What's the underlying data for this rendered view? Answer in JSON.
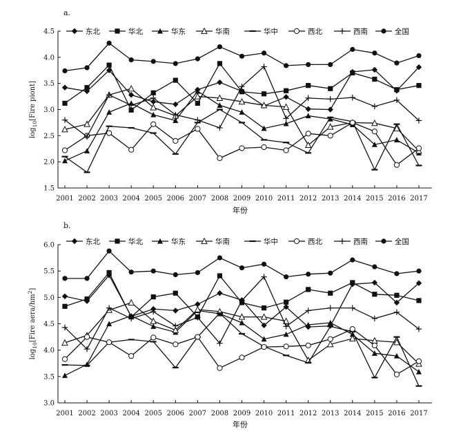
{
  "figure": {
    "colors": {
      "line": "#111111",
      "background": "#ffffff"
    },
    "legend_entries": [
      {
        "name": "东北",
        "marker": "diamond"
      },
      {
        "name": "华北",
        "marker": "square"
      },
      {
        "name": "华东",
        "marker": "triangle"
      },
      {
        "name": "华南",
        "marker": "triangle-open"
      },
      {
        "name": "华中",
        "marker": "dash"
      },
      {
        "name": "西北",
        "marker": "circle-open"
      },
      {
        "name": "西南",
        "marker": "plus"
      },
      {
        "name": "全国",
        "marker": "circle"
      }
    ]
  },
  "chart_data": [
    {
      "panel": "a.",
      "type": "line",
      "xlabel": "年份",
      "ylabel_main": "log",
      "ylabel_sub": "10",
      "ylabel_rest": "[Fire piont]",
      "ylim": [
        1.5,
        4.5
      ],
      "yticks": [
        "1.5",
        "2.0",
        "2.5",
        "3.0",
        "3.5",
        "4.0",
        "4.5"
      ],
      "categories": [
        "2001",
        "2002",
        "2003",
        "2004",
        "2005",
        "2006",
        "2007",
        "2008",
        "2009",
        "2010",
        "2011",
        "2012",
        "2013",
        "2014",
        "2015",
        "2016",
        "2017"
      ],
      "series": [
        {
          "name": "东北",
          "values": [
            3.42,
            3.35,
            3.75,
            3.28,
            3.15,
            3.1,
            3.38,
            3.52,
            3.35,
            3.07,
            3.24,
            3.01,
            3.0,
            3.72,
            3.76,
            3.36,
            3.81
          ]
        },
        {
          "name": "华北",
          "values": [
            3.12,
            3.42,
            3.85,
            2.99,
            3.32,
            3.56,
            3.12,
            3.88,
            3.34,
            3.3,
            3.36,
            3.46,
            3.4,
            3.7,
            3.58,
            3.38,
            3.46
          ]
        },
        {
          "name": "华东",
          "values": [
            2.02,
            2.21,
            2.95,
            3.12,
            2.9,
            2.79,
            3.35,
            3.08,
            2.95,
            2.64,
            2.73,
            2.88,
            2.82,
            2.71,
            2.33,
            2.42,
            2.17
          ]
        },
        {
          "name": "华南",
          "values": [
            2.62,
            2.72,
            3.28,
            3.4,
            3.04,
            2.88,
            3.25,
            3.22,
            3.15,
            3.08,
            3.05,
            2.32,
            2.67,
            2.75,
            2.74,
            2.64,
            2.21
          ]
        },
        {
          "name": "华中",
          "values": [
            2.1,
            1.8,
            2.68,
            2.65,
            2.55,
            2.15,
            2.75,
            3.0,
            2.75,
            2.42,
            2.37,
            2.17,
            2.85,
            2.77,
            1.85,
            2.72,
            1.93
          ]
        },
        {
          "name": "西北",
          "values": [
            2.22,
            2.5,
            2.55,
            2.23,
            2.72,
            2.4,
            2.63,
            2.07,
            2.26,
            2.28,
            2.22,
            2.54,
            2.5,
            2.75,
            2.58,
            1.94,
            2.26
          ]
        },
        {
          "name": "西南",
          "values": [
            2.8,
            2.48,
            3.28,
            3.08,
            3.22,
            2.9,
            2.8,
            2.65,
            3.44,
            3.82,
            2.83,
            3.22,
            3.2,
            3.23,
            3.06,
            3.18,
            2.79
          ]
        },
        {
          "name": "全国",
          "values": [
            3.74,
            3.8,
            4.27,
            3.95,
            3.92,
            3.88,
            3.97,
            4.2,
            4.02,
            4.08,
            3.84,
            3.86,
            3.86,
            4.15,
            4.08,
            3.89,
            4.03
          ]
        }
      ]
    },
    {
      "panel": "b.",
      "type": "line",
      "xlabel": "年份",
      "ylabel_main": "log",
      "ylabel_sub": "10",
      "ylabel_rest": "[Fire aera/hm",
      "ylabel_sup": "2",
      "ylabel_end": "]",
      "ylim": [
        3.0,
        6.0
      ],
      "yticks": [
        "3.0",
        "3.5",
        "4.0",
        "4.5",
        "5.0",
        "5.5",
        "6.0"
      ],
      "categories": [
        "2001",
        "2002",
        "2003",
        "2004",
        "2005",
        "2006",
        "2007",
        "2008",
        "2009",
        "2010",
        "2011",
        "2012",
        "2013",
        "2014",
        "2015",
        "2016",
        "2017"
      ],
      "series": [
        {
          "name": "东北",
          "values": [
            5.02,
            4.93,
            5.42,
            4.64,
            4.78,
            4.75,
            4.87,
            5.08,
            4.95,
            4.47,
            4.82,
            4.44,
            4.46,
            5.25,
            5.28,
            4.9,
            5.27
          ]
        },
        {
          "name": "华北",
          "values": [
            4.83,
            4.97,
            5.47,
            4.63,
            5.01,
            5.08,
            4.63,
            5.41,
            4.9,
            4.8,
            4.91,
            5.15,
            5.08,
            5.28,
            5.06,
            5.04,
            4.94
          ]
        },
        {
          "name": "华东",
          "values": [
            3.52,
            3.73,
            4.5,
            4.65,
            4.45,
            4.34,
            4.75,
            4.69,
            4.52,
            4.21,
            4.3,
            4.48,
            4.52,
            4.3,
            3.94,
            3.89,
            3.59
          ]
        },
        {
          "name": "华南",
          "values": [
            4.14,
            4.28,
            4.76,
            4.9,
            4.55,
            4.38,
            4.77,
            4.73,
            4.63,
            4.63,
            4.55,
            3.81,
            4.11,
            4.22,
            4.18,
            4.15,
            3.74
          ]
        },
        {
          "name": "华中",
          "values": [
            3.72,
            3.71,
            4.15,
            4.2,
            4.16,
            3.67,
            4.25,
            4.7,
            4.31,
            4.07,
            3.9,
            3.76,
            4.45,
            4.35,
            3.48,
            4.25,
            3.32
          ]
        },
        {
          "name": "西北",
          "values": [
            3.83,
            4.25,
            4.15,
            3.89,
            4.24,
            4.11,
            4.25,
            3.66,
            3.86,
            4.06,
            4.07,
            4.09,
            4.21,
            4.4,
            4.09,
            3.54,
            3.79
          ]
        },
        {
          "name": "西南",
          "values": [
            4.43,
            4.02,
            4.8,
            4.6,
            4.73,
            4.46,
            4.62,
            4.13,
            4.94,
            5.39,
            4.45,
            4.75,
            4.8,
            4.8,
            4.6,
            4.72,
            4.4
          ]
        },
        {
          "name": "全国",
          "values": [
            5.36,
            5.36,
            5.88,
            5.48,
            5.5,
            5.43,
            5.47,
            5.75,
            5.56,
            5.63,
            5.39,
            5.44,
            5.46,
            5.71,
            5.58,
            5.45,
            5.5
          ]
        }
      ]
    }
  ]
}
